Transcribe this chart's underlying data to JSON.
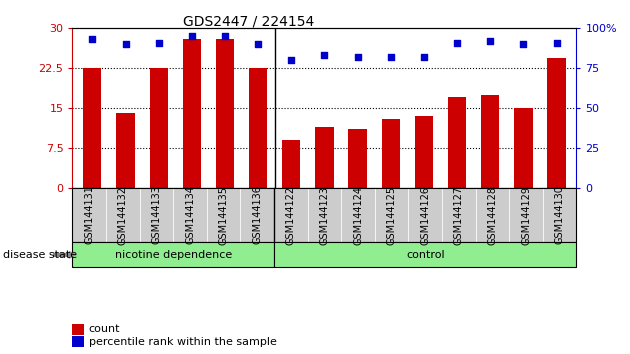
{
  "title": "GDS2447 / 224154",
  "categories": [
    "GSM144131",
    "GSM144132",
    "GSM144133",
    "GSM144134",
    "GSM144135",
    "GSM144136",
    "GSM144122",
    "GSM144123",
    "GSM144124",
    "GSM144125",
    "GSM144126",
    "GSM144127",
    "GSM144128",
    "GSM144129",
    "GSM144130"
  ],
  "counts": [
    22.5,
    14.0,
    22.5,
    28.0,
    28.0,
    22.5,
    9.0,
    11.5,
    11.0,
    13.0,
    13.5,
    17.0,
    17.5,
    15.0,
    24.5
  ],
  "percentiles": [
    93,
    90,
    91,
    95,
    95,
    90,
    80,
    83,
    82,
    82,
    82,
    91,
    92,
    90,
    91
  ],
  "bar_color": "#cc0000",
  "dot_color": "#0000cc",
  "ylim_left": [
    0,
    30
  ],
  "ylim_right": [
    0,
    100
  ],
  "yticks_left": [
    0,
    7.5,
    15,
    22.5,
    30
  ],
  "ytick_labels_left": [
    "0",
    "7.5",
    "15",
    "22.5",
    "30"
  ],
  "yticks_right": [
    0,
    25,
    50,
    75,
    100
  ],
  "ytick_labels_right": [
    "0",
    "25",
    "50",
    "75",
    "100%"
  ],
  "group1_label": "nicotine dependence",
  "group2_label": "control",
  "group1_count": 6,
  "group2_count": 9,
  "disease_state_label": "disease state",
  "legend_count_label": "count",
  "legend_percentile_label": "percentile rank within the sample",
  "group_color": "#90ee90",
  "plot_bg": "#ffffff",
  "tick_label_color_left": "#cc0000",
  "tick_label_color_right": "#0000cc",
  "xtick_bg": "#cccccc",
  "bar_width": 0.55,
  "title_fontsize": 10,
  "axis_fontsize": 8,
  "legend_fontsize": 8
}
